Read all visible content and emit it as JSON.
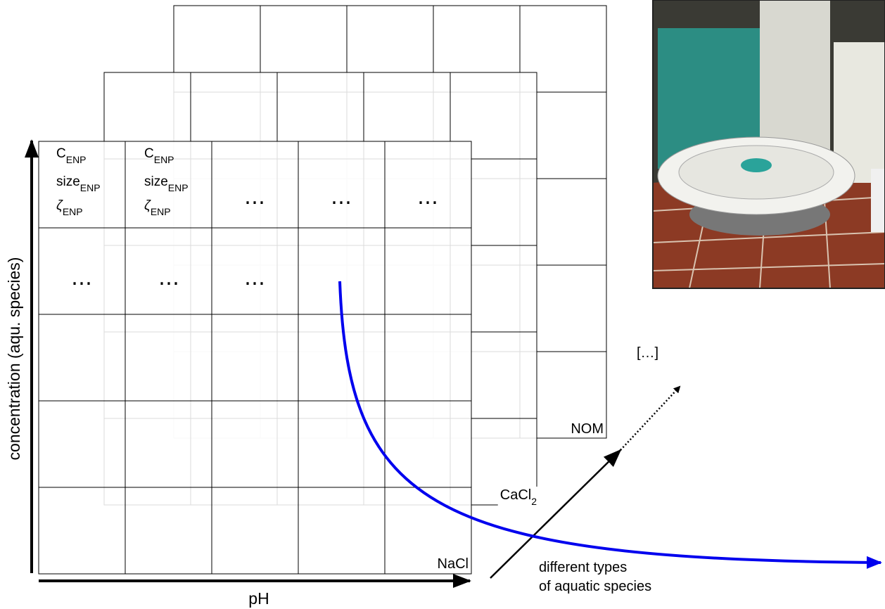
{
  "cells": [
    {
      "lines": [
        {
          "text": "C",
          "sub": "ENP"
        },
        {
          "text": "size",
          "sub": "ENP"
        },
        {
          "text": "ζ",
          "sub": "ENP"
        }
      ]
    },
    {
      "lines": [
        {
          "text": "C",
          "sub": "ENP"
        },
        {
          "text": "size",
          "sub": "ENP"
        },
        {
          "text": "ζ",
          "sub": "ENP"
        }
      ]
    }
  ],
  "ellipses": [
    "…",
    "…",
    "…",
    "…",
    "…",
    "…"
  ],
  "layers": [
    {
      "label": "NOM"
    },
    {
      "label": "CaCl",
      "sub": "2"
    },
    {
      "label": "NaCl"
    }
  ],
  "x_axis_label": "pH",
  "y_axis_label": "concentration (aqu. species)",
  "diagonal_axis_label": [
    "different types",
    "of aquatic species"
  ],
  "more": "[…]"
}
